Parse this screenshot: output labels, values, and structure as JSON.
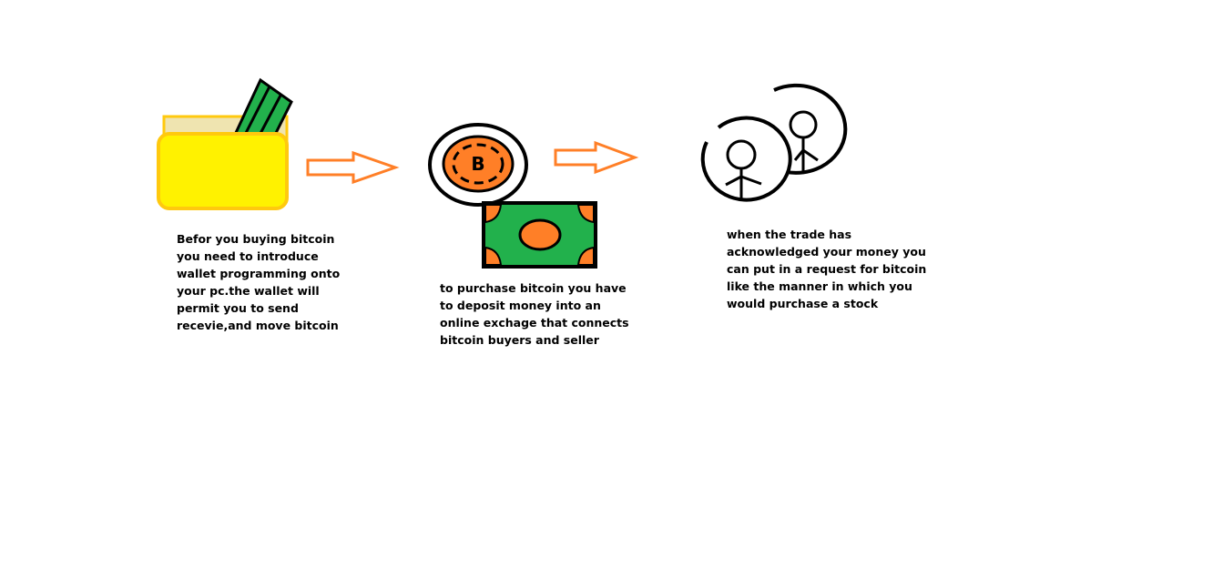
{
  "steps": [
    {
      "icon": "wallet-icon",
      "text": "Befor you buying bitcoin\nyou need to introduce\nwallet programming onto\nyour pc.the wallet will\npermit you to send\nrecevie,and move bitcoin"
    },
    {
      "icon": "bitcoin-coin-and-banknote-icon",
      "coin_letter": "B",
      "text": "to purchase bitcoin you have\nto deposit money into an\nonline exchage that connects\nbitcoin buyers and seller"
    },
    {
      "icon": "people-icon",
      "text": "when the trade has\nacknowledged your money you\ncan put in a request for bitcoin\nlike the manner in which you\nwould purchase a stock"
    }
  ],
  "colors": {
    "wallet": "#fff200",
    "wallet_border": "#ffc90e",
    "wallet_back": "#efe4b0",
    "money_green": "#22b14c",
    "coin_orange": "#ff7f27",
    "arrow": "#ff7f27",
    "ink": "#000000"
  }
}
